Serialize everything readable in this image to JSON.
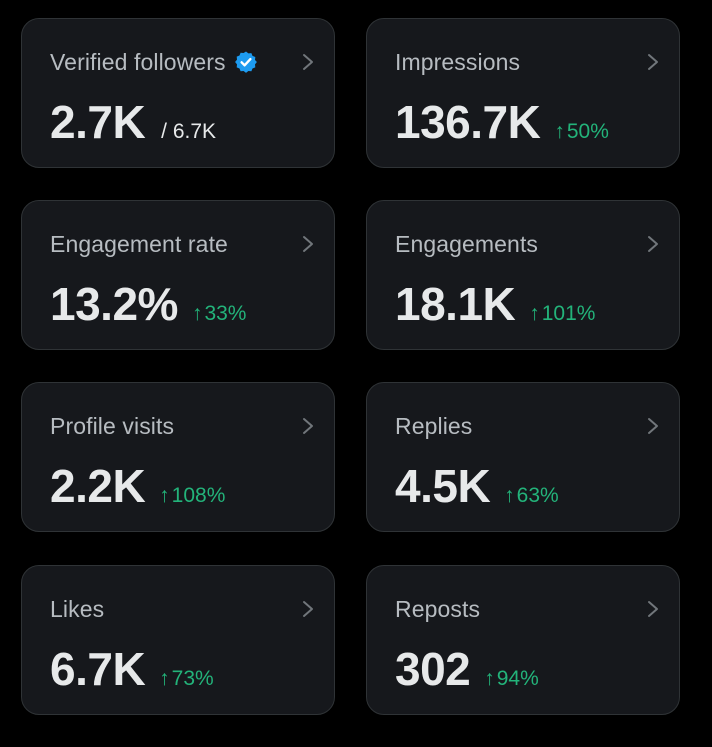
{
  "accent_colors": {
    "card_background": "#16181c",
    "card_border": "#2f3336",
    "positive_change": "#23b37a",
    "verified_badge": "#1d9bf0"
  },
  "metrics": [
    {
      "label": "Verified followers",
      "value": "2.7K",
      "sub": "/ 6.7K",
      "change": "",
      "icon": "verified-badge-icon"
    },
    {
      "label": "Impressions",
      "value": "136.7K",
      "change": "50%"
    },
    {
      "label": "Engagement rate",
      "value": "13.2%",
      "change": "33%"
    },
    {
      "label": "Engagements",
      "value": "18.1K",
      "change": "101%"
    },
    {
      "label": "Profile visits",
      "value": "2.2K",
      "change": "108%"
    },
    {
      "label": "Replies",
      "value": "4.5K",
      "change": "63%"
    },
    {
      "label": "Likes",
      "value": "6.7K",
      "change": "73%"
    },
    {
      "label": "Reposts",
      "value": "302",
      "change": "94%"
    }
  ],
  "change_arrow": "↑"
}
